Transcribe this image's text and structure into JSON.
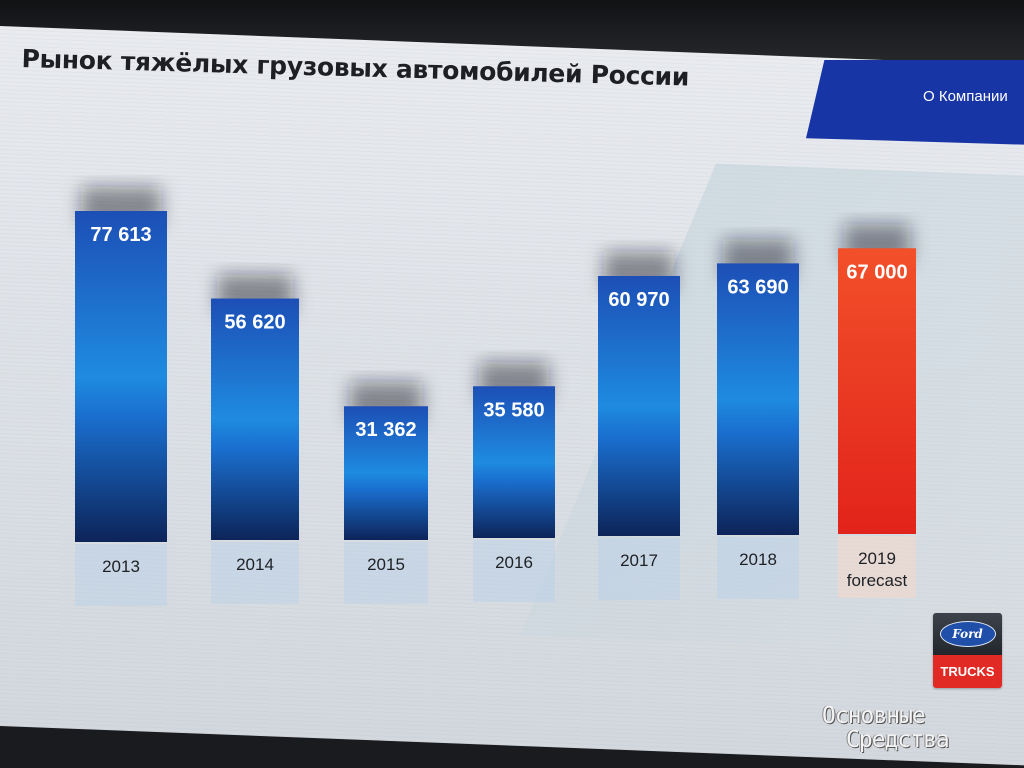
{
  "slide": {
    "title": "Рынок тяжёлых грузовых автомобилей России",
    "corner_label": "О Компании"
  },
  "logo": {
    "brand": "Ford",
    "sub": "TRUCKS"
  },
  "watermark": {
    "line1": "Основные",
    "line2": "Средства"
  },
  "colors": {
    "bar_blue": "#1b5fc7",
    "bar_blue_dark": "#0f2a63",
    "bar_forecast": "#f14a24",
    "accent_band": "#1835a6",
    "ford_red": "#e22a25"
  },
  "chart_data": {
    "type": "bar",
    "categories": [
      "2013",
      "2014",
      "2015",
      "2016",
      "2017",
      "2018",
      "2019\nforecast"
    ],
    "values": [
      77613,
      56620,
      31362,
      35580,
      60970,
      63690,
      67000
    ],
    "value_labels": [
      "77 613",
      "56 620",
      "31 362",
      "35 580",
      "60 970",
      "63 690",
      "67 000"
    ],
    "highlighted": [
      false,
      false,
      false,
      false,
      false,
      false,
      true
    ],
    "title": "Рынок тяжёлых грузовых автомобилей России",
    "xlabel": "",
    "ylabel": "",
    "ylim": [
      0,
      80000
    ],
    "grid": false,
    "legend": "none"
  }
}
